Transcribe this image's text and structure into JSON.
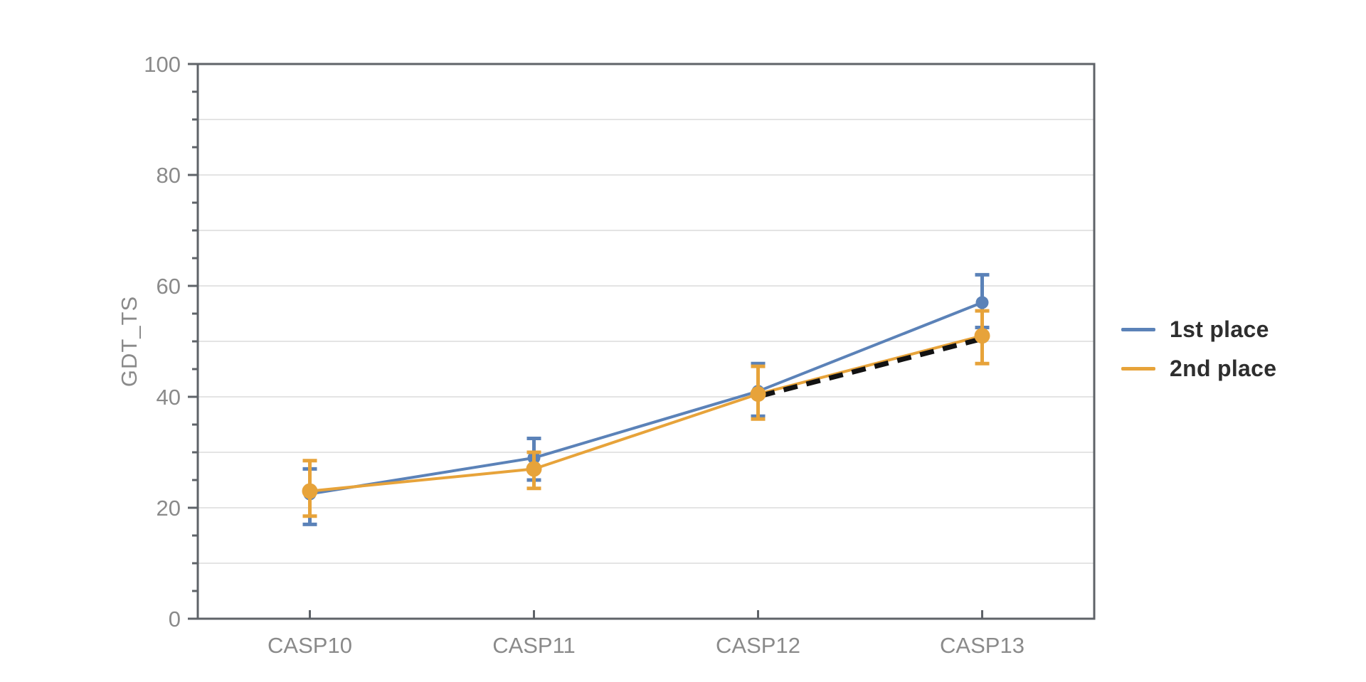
{
  "chart_data": {
    "type": "line",
    "title": "",
    "xlabel": "",
    "ylabel": "GDT_TS",
    "categories": [
      "CASP10",
      "CASP11",
      "CASP12",
      "CASP13"
    ],
    "ylim": [
      0,
      100
    ],
    "ytick_labels": [
      "0",
      "20",
      "40",
      "60",
      "80",
      "100"
    ],
    "ytick_label_every": 20,
    "gridline_every": 10,
    "minor_tick_every": 5,
    "grid": "horizontal",
    "legend_position": "right-outside",
    "series": [
      {
        "name": "1st place",
        "color": "#5b82b8",
        "values": [
          22.5,
          29,
          41,
          57
        ],
        "err_low": [
          17,
          25,
          36.5,
          52.5
        ],
        "err_high": [
          27,
          32.5,
          46,
          62
        ]
      },
      {
        "name": "2nd place",
        "color": "#e7a33a",
        "values": [
          23,
          27,
          40.5,
          51
        ],
        "err_low": [
          18.5,
          23.5,
          36,
          46
        ],
        "err_high": [
          28.5,
          30,
          45.5,
          55.5
        ]
      }
    ],
    "annotations": [
      {
        "type": "dashed_line",
        "color": "#121212",
        "from_category": "CASP12",
        "from_value": 40.2,
        "to_category": "CASP13",
        "to_value": 50.4
      }
    ]
  },
  "colors": {
    "background": "#ffffff",
    "frame": "#5f6368",
    "gridline": "#e4e4e4",
    "tick_label": "#8a8a8a",
    "axis_title": "#8a8a8a",
    "legend_text": "#2e2e2e"
  }
}
